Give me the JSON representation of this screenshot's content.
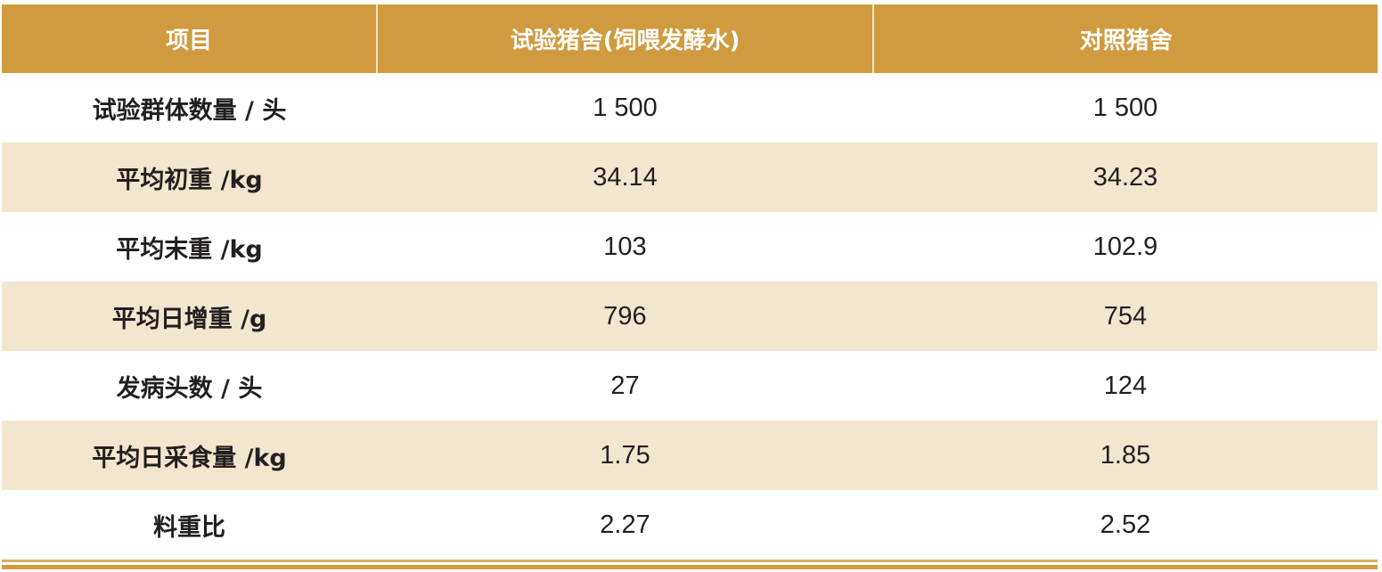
{
  "colors": {
    "header_bg": "#cf9b3e",
    "alt_row_bg": "#f3e6cf",
    "header_text": "#ffffff"
  },
  "table": {
    "headers": [
      "项目",
      "试验猪舍(饲喂发酵水)",
      "对照猪舍"
    ],
    "rows": [
      [
        "试验群体数量 / 头",
        "1 500",
        "1 500"
      ],
      [
        "平均初重 /kg",
        "34.14",
        "34.23"
      ],
      [
        "平均末重 /kg",
        "103",
        "102.9"
      ],
      [
        "平均日增重 /g",
        "796",
        "754"
      ],
      [
        "发病头数 / 头",
        "27",
        "124"
      ],
      [
        "平均日采食量 /kg",
        "1.75",
        "1.85"
      ],
      [
        "料重比",
        "2.27",
        "2.52"
      ]
    ]
  }
}
